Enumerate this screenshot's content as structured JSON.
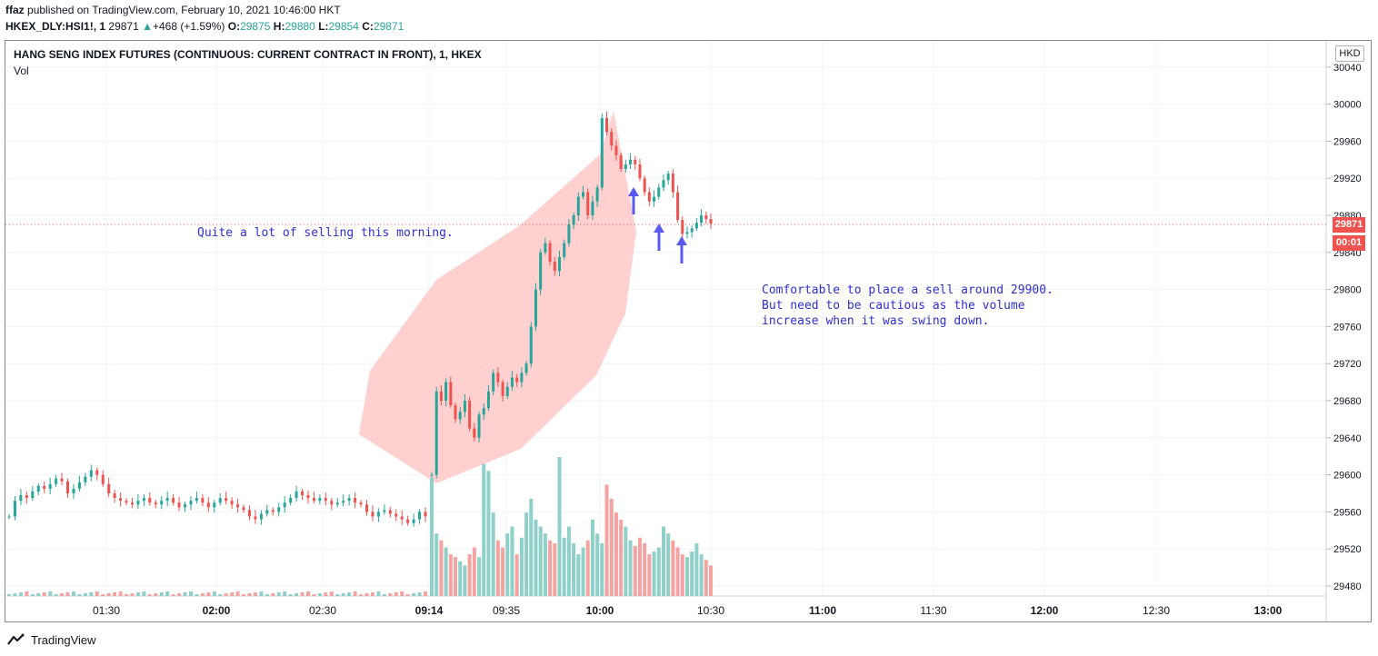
{
  "header": {
    "author": "ffaz",
    "published_text": "published on TradingView.com, February 10, 2021 10:46:00 HKT",
    "symbol": "HKEX_DLY:HSI1!, 1",
    "last": "29871",
    "change": "+468 (+1.59%)",
    "o_label": "O:",
    "o_value": "29875",
    "h_label": "H:",
    "h_value": "29880",
    "l_label": "L:",
    "l_value": "29854",
    "c_label": "C:",
    "c_value": "29871"
  },
  "chart_title": "HANG SENG INDEX FUTURES (CONTINUOUS: CURRENT CONTRACT IN FRONT), 1, HKEX",
  "volume_label": "Vol",
  "currency": "HKD",
  "price_badge": "29871",
  "countdown_badge": "00:01",
  "annotations": {
    "note1": "Quite a lot of selling this morning.",
    "note2_line1": "Comfortable to place a sell around 29900.",
    "note2_line2": "But need to be cautious as the volume",
    "note2_line3": "increase when it was swing down."
  },
  "footer": {
    "brand": "TradingView"
  },
  "colors": {
    "up": "#26a69a",
    "down": "#ef5350",
    "vol_up": "#8fd0c9",
    "vol_down": "#f4a3a1",
    "highlight": "#ffcdcd",
    "arrow": "#5a5af0",
    "note": "#2f2fd6"
  },
  "chart_data": {
    "type": "candlestick",
    "title": "HANG SENG INDEX FUTURES (CONTINUOUS: CURRENT CONTRACT IN FRONT), 1, HKEX",
    "y_ticks": [
      30040,
      30000,
      29960,
      29920,
      29880,
      29840,
      29800,
      29760,
      29720,
      29680,
      29640,
      29600,
      29560,
      29520,
      29480
    ],
    "ylim": [
      29473,
      30060
    ],
    "x_ticks": [
      {
        "label": "01:30",
        "bold": false
      },
      {
        "label": "02:00",
        "bold": true
      },
      {
        "label": "02:30",
        "bold": false
      },
      {
        "label": "09:14",
        "bold": true
      },
      {
        "label": "09:35",
        "bold": false
      },
      {
        "label": "10:00",
        "bold": true
      },
      {
        "label": "10:30",
        "bold": false
      },
      {
        "label": "11:00",
        "bold": true
      },
      {
        "label": "11:30",
        "bold": false
      },
      {
        "label": "12:00",
        "bold": true
      },
      {
        "label": "12:30",
        "bold": false
      },
      {
        "label": "13:00",
        "bold": true
      }
    ],
    "last_price": 29871,
    "session1_start": 29555,
    "session1_values": [
      29555,
      29572,
      29578,
      29575,
      29582,
      29588,
      29585,
      29590,
      29596,
      29593,
      29580,
      29585,
      29592,
      29598,
      29605,
      29600,
      29590,
      29580,
      29575,
      29572,
      29570,
      29568,
      29572,
      29575,
      29570,
      29568,
      29572,
      29575,
      29570,
      29565,
      29568,
      29572,
      29575,
      29570,
      29565,
      29570,
      29575,
      29572,
      29568,
      29565,
      29562,
      29555,
      29552,
      29558,
      29562,
      29560,
      29565,
      29570,
      29575,
      29582,
      29578,
      29575,
      29572,
      29575,
      29572,
      29568,
      29570,
      29572,
      29575,
      29570,
      29568,
      29560,
      29555,
      29560,
      29562,
      29558,
      29555,
      29552,
      29548,
      29552,
      29560,
      29555
    ],
    "session2_values": [
      29600,
      29690,
      29680,
      29700,
      29675,
      29660,
      29668,
      29680,
      29650,
      29640,
      29665,
      29672,
      29690,
      29710,
      29700,
      29685,
      29695,
      29705,
      29700,
      29710,
      29720,
      29760,
      29800,
      29840,
      29850,
      29830,
      29820,
      29835,
      29850,
      29870,
      29880,
      29900,
      29905,
      29880,
      29895,
      29910,
      29985,
      29970,
      29955,
      29945,
      29930,
      29935,
      29940,
      29935,
      29920,
      29905,
      29895,
      29900,
      29910,
      29918,
      29925,
      29905,
      29875,
      29860,
      29862,
      29866,
      29872,
      29880,
      29876,
      29871
    ],
    "volume_session1_max": 12,
    "volume_session2": [
      85,
      45,
      40,
      35,
      30,
      28,
      25,
      22,
      30,
      35,
      28,
      95,
      90,
      60,
      40,
      35,
      45,
      50,
      30,
      42,
      60,
      70,
      55,
      50,
      45,
      40,
      38,
      100,
      42,
      50,
      38,
      30,
      35,
      40,
      55,
      45,
      38,
      80,
      70,
      60,
      55,
      50,
      40,
      36,
      42,
      38,
      30,
      32,
      35,
      50,
      45,
      40,
      35,
      30,
      28,
      32,
      38,
      30,
      26,
      22
    ]
  }
}
